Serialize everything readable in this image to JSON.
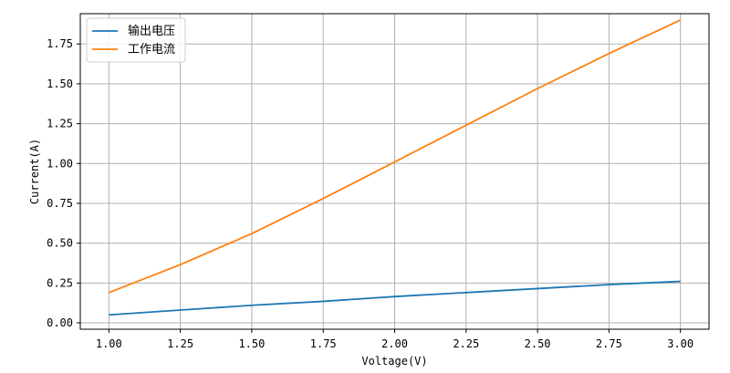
{
  "chart_data": {
    "type": "line",
    "title": "",
    "xlabel": "Voltage(V)",
    "ylabel": "Current(A)",
    "xlim": [
      0.9,
      3.1
    ],
    "ylim": [
      -0.04,
      1.94
    ],
    "xticks": [
      "1.00",
      "1.25",
      "1.50",
      "1.75",
      "2.00",
      "2.25",
      "2.50",
      "2.75",
      "3.00"
    ],
    "yticks": [
      "0.00",
      "0.25",
      "0.50",
      "0.75",
      "1.00",
      "1.25",
      "1.50",
      "1.75"
    ],
    "grid": true,
    "legend_position": "top-left",
    "x": [
      1.0,
      1.25,
      1.5,
      1.75,
      2.0,
      2.25,
      2.5,
      2.75,
      3.0
    ],
    "series": [
      {
        "name": "输出电压",
        "color": "#1f77b4",
        "values": [
          0.05,
          0.08,
          0.11,
          0.135,
          0.165,
          0.19,
          0.215,
          0.24,
          0.26
        ]
      },
      {
        "name": "工作电流",
        "color": "#ff7f0e",
        "values": [
          0.19,
          0.365,
          0.56,
          0.78,
          1.01,
          1.24,
          1.47,
          1.69,
          1.9
        ]
      }
    ]
  }
}
